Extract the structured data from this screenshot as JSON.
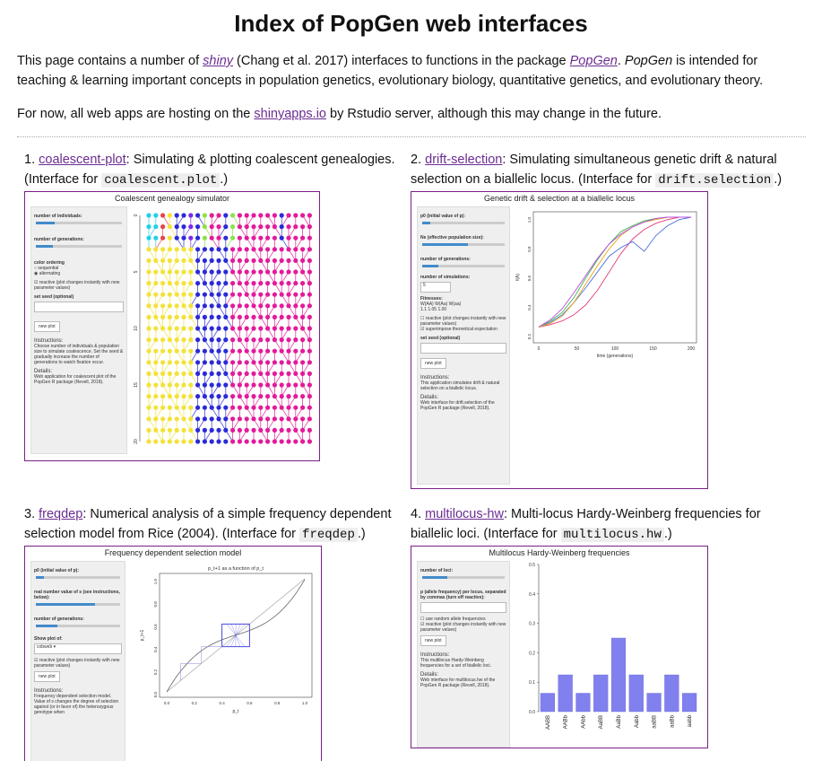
{
  "page": {
    "title": "Index of PopGen web interfaces",
    "intro1_a": "This page contains a number of ",
    "intro1_link1": "shiny",
    "intro1_b": " (Chang et al. 2017) interfaces to functions in the package ",
    "intro1_link2": "PopGen",
    "intro1_c": ". ",
    "intro1_em": "PopGen",
    "intro1_d": " is intended for teaching & learning important concepts in population genetics, evolutionary biology, quantitative genetics, and evolutionary theory.",
    "intro2_a": "For now, all web apps are hosting on the ",
    "intro2_link": "shinyapps.io",
    "intro2_b": " by Rstudio server, although this may change in the future."
  },
  "apps": [
    {
      "num": "1. ",
      "link": "coalescent-plot",
      "desc": ": Simulating & plotting coalescent genealogies. (Interface for ",
      "code": "coalescent.plot",
      "end": ".)",
      "shot_title": "Coalescent genealogy simulator"
    },
    {
      "num": "2. ",
      "link": "drift-selection",
      "desc": ": Simulating simultaneous genetic drift & natural selection on a biallelic locus. (Interface for ",
      "code": "drift.selection",
      "end": ".)",
      "shot_title": "Genetic drift & selection at a biallelic locus"
    },
    {
      "num": "3. ",
      "link": "freqdep",
      "desc": ": Numerical analysis of a simple frequency dependent selection model from Rice (2004). (Interface for ",
      "code": "freqdep",
      "end": ".)",
      "shot_title": "Frequency dependent selection model"
    },
    {
      "num": "4. ",
      "link": "multilocus-hw",
      "desc": ": Multi-locus Hardy-Weinberg frequencies for biallelic loci. (Interface for ",
      "code": "multilocus.hw",
      "end": ".)",
      "shot_title": "Multilocus Hardy-Weinberg frequencies"
    }
  ],
  "coal_panel": {
    "l1": "number of individuals:",
    "l2": "number of generations:",
    "l3": "color ordering",
    "r1": "sequential",
    "r2": "alternating",
    "c1": "reactive (plot changes instantly with new parameter values)",
    "l4": "set seed (optional)",
    "btn": "new plot",
    "h1": "Instructions:",
    "t1": "Choose number of individuals & population size to simulate coalescence. Set the seed & gradually increase the number of generations to watch fixation occur.",
    "h2": "Details:",
    "t2": "Web application for coalescent plot of the PopGen R package (Revell, 2018)."
  },
  "drift_panel": {
    "l1": "p0 (initial value of p):",
    "l2": "Ne (effective population size):",
    "l3": "number of generations:",
    "l4": "number of simulations:",
    "v4": "5",
    "l5": "Fitnesses:",
    "w": "W(AA)   W(Aa)   W(aa)",
    "wv": "1.1      1.05     1.00",
    "c1": "reactive (plot changes instantly with new parameter values)",
    "c2": "superimpose theoretical expectation",
    "l6": "set seed (optional)",
    "btn": "new plot",
    "h1": "Instructions:",
    "t1": "This application simulates drift & natural selection on a biallelic locus.",
    "h2": "Details:",
    "t2": "Web interface for drift.selection of the PopGen R package (Revell, 2018)."
  },
  "freq_panel": {
    "l1": "p0 (initial value of p):",
    "l2": "real number value of s (see instructions, below):",
    "l3": "number of generations:",
    "l4": "Show plot of:",
    "sel": "cobweb",
    "c1": "reactive (plot changes instantly with new parameter values)",
    "btn": "new plot",
    "h1": "Instructions:",
    "t1": "Frequency dependent selection model. Value of s changes the degree of selection against (or in favor of) the heterozygous genotype when"
  },
  "mhw_panel": {
    "l1": "number of loci:",
    "l2": "p (allele frequency) per locus, separated by commas (turn off reactive):",
    "c1": "use random allele frequencies",
    "c2": "reactive (plot changes instantly with new parameter values)",
    "btn": "new plot",
    "h1": "Instructions:",
    "t1": "This multilocus Hardy-Weinberg frequencies for a set of biallelic loci.",
    "h2": "Details:",
    "t2": "Web interface for multilocus.hw of the PopGen R package (Revell, 2018)."
  },
  "colors": {
    "link": "#6b2c91",
    "frame": "#7a1f86",
    "bar": "#8080ee"
  },
  "chart_data": [
    {
      "type": "bar",
      "categories": [
        "AABB",
        "AABb",
        "AAbb",
        "AaBB",
        "AaBb",
        "Aabb",
        "aaBB",
        "aaBb",
        "aabb"
      ],
      "values": [
        0.0625,
        0.125,
        0.0625,
        0.125,
        0.25,
        0.125,
        0.0625,
        0.125,
        0.0625
      ],
      "ylim": [
        0,
        0.5
      ],
      "yticks": [
        "0.0",
        "0.1",
        "0.2",
        "0.3",
        "0.4",
        "0.5"
      ]
    },
    {
      "type": "line",
      "xlabel": "time (generations)",
      "ylabel": "f(A)",
      "xticks": [
        "0",
        "50",
        "100",
        "150",
        "200"
      ],
      "yticks": [
        "0.2",
        "0.4",
        "0.6",
        "0.8",
        "1.0"
      ],
      "series": [
        {
          "color": "#e23b7a",
          "values": [
            0.1,
            0.12,
            0.15,
            0.2,
            0.28,
            0.4,
            0.55,
            0.7,
            0.82,
            0.9,
            0.95,
            0.98,
            1,
            1
          ]
        },
        {
          "color": "#4a6fe0",
          "values": [
            0.1,
            0.14,
            0.2,
            0.3,
            0.42,
            0.55,
            0.68,
            0.75,
            0.8,
            0.72,
            0.85,
            0.93,
            0.98,
            1
          ]
        },
        {
          "color": "#3fb54a",
          "values": [
            0.1,
            0.15,
            0.22,
            0.34,
            0.5,
            0.65,
            0.78,
            0.88,
            0.93,
            0.97,
            0.99,
            1,
            1,
            1
          ]
        },
        {
          "color": "#e8a21c",
          "values": [
            0.1,
            0.13,
            0.19,
            0.3,
            0.45,
            0.6,
            0.74,
            0.85,
            0.92,
            0.96,
            0.98,
            1,
            1,
            1
          ]
        },
        {
          "color": "#b74be0",
          "values": [
            0.1,
            0.16,
            0.25,
            0.38,
            0.52,
            0.66,
            0.78,
            0.86,
            0.92,
            0.96,
            0.99,
            1,
            1,
            1
          ]
        }
      ]
    },
    {
      "type": "line",
      "title": "p_t+1 as a function of p_t",
      "xlabel": "p_t",
      "ylabel": "p_t+1",
      "xticks": [
        "0.0",
        "0.2",
        "0.4",
        "0.6",
        "0.8",
        "1.0"
      ],
      "yticks": [
        "0.0",
        "0.2",
        "0.4",
        "0.6",
        "0.8",
        "1.0"
      ]
    }
  ]
}
